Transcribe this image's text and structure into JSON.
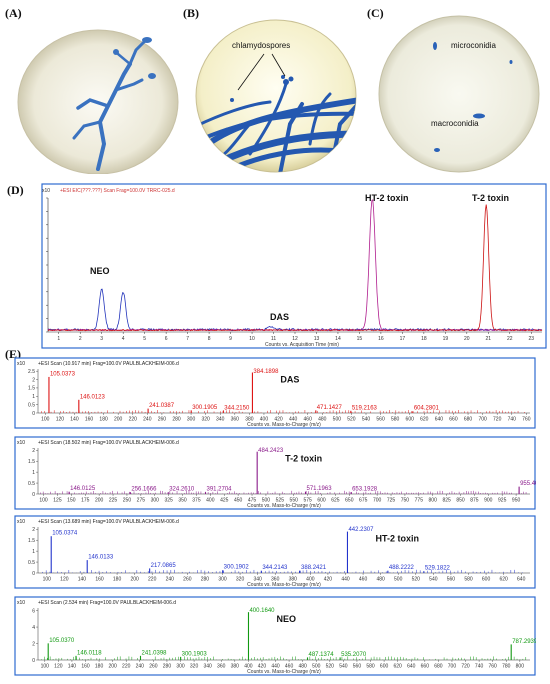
{
  "panels": {
    "A": {
      "label": "(A)"
    },
    "B": {
      "label": "(B)",
      "annotation": "chlamydospores"
    },
    "C": {
      "label": "(C)",
      "annotations": [
        "microconidia",
        "macroconidia"
      ]
    },
    "D": {
      "label": "(D)"
    },
    "E": {
      "label": "(E)"
    }
  },
  "chromatogram": {
    "header": "+ESI EIC(???.???) Scan Frag=100.0V TRRC-025.d",
    "y_exponent": "x10",
    "x_axis_label": "Counts vs. Acquisition Time (min)",
    "x_ticks": [
      "1",
      "2",
      "3",
      "4",
      "5",
      "6",
      "7",
      "8",
      "9",
      "10",
      "11",
      "12",
      "13",
      "14",
      "15",
      "16",
      "17",
      "18",
      "19",
      "20",
      "21",
      "22",
      "23"
    ],
    "peak_labels": {
      "neo": "NEO",
      "das": "DAS",
      "ht2": "HT-2 toxin",
      "t2": "T-2 toxin"
    },
    "colors": {
      "neo": "#2233bb",
      "ht2": "#b01e8e",
      "t2": "#cc1111"
    }
  },
  "chart_data": [
    {
      "type": "line",
      "title": "",
      "xlabel": "Counts vs. Acquisition Time (min)",
      "ylabel": "",
      "xlim": [
        0.5,
        23.5
      ],
      "series": [
        {
          "name": "NEO",
          "peaks": [
            {
              "x": 3.0,
              "y": 0.3
            },
            {
              "x": 4.0,
              "y": 0.28
            }
          ]
        },
        {
          "name": "DAS",
          "peaks": [
            {
              "x": 10.9,
              "y": 0.02
            }
          ]
        },
        {
          "name": "HT-2 toxin",
          "peaks": [
            {
              "x": 15.6,
              "y": 0.98
            }
          ]
        },
        {
          "name": "T-2 toxin",
          "peaks": [
            {
              "x": 20.9,
              "y": 0.94
            }
          ]
        }
      ]
    },
    {
      "type": "bar",
      "title": "+ESI Scan (10.917 min) Frag=100.0V PAULBLACKHEIM-006.d",
      "xlabel": "Counts vs. Mass-to-Charge (m/z)",
      "compound": "DAS",
      "color": "#dd1111",
      "y_exponent": "x10",
      "yticks": [
        "0",
        "0.5",
        "1",
        "1.5",
        "2",
        "2.5"
      ],
      "xlim": [
        90,
        765
      ],
      "xticks": [
        100,
        120,
        140,
        160,
        180,
        200,
        220,
        240,
        260,
        280,
        300,
        320,
        340,
        360,
        380,
        400,
        420,
        440,
        460,
        480,
        500,
        520,
        540,
        560,
        580,
        600,
        620,
        640,
        660,
        680,
        700,
        720,
        740,
        760
      ],
      "peaks": [
        {
          "mz": 105.0373,
          "rel": 0.82,
          "label": "105.0373"
        },
        {
          "mz": 146.0123,
          "rel": 0.3,
          "label": "146.0123"
        },
        {
          "mz": 241.0387,
          "rel": 0.1,
          "label": "241.0387"
        },
        {
          "mz": 300.1905,
          "rel": 0.06,
          "label": "300.1905"
        },
        {
          "mz": 344.215,
          "rel": 0.05,
          "label": "344.2150"
        },
        {
          "mz": 384.1898,
          "rel": 0.92,
          "label": "384.1898"
        },
        {
          "mz": 471.1427,
          "rel": 0.06,
          "label": "471.1427"
        },
        {
          "mz": 519.2163,
          "rel": 0.05,
          "label": "519.2163"
        },
        {
          "mz": 604.2801,
          "rel": 0.04,
          "label": "604.2801"
        }
      ]
    },
    {
      "type": "bar",
      "title": "+ESI Scan (18.502 min) Frag=100.0V PAULBLACKHEIM-006.d",
      "xlabel": "Counts vs. Mass-to-Charge (m/z)",
      "compound": "T-2 toxin",
      "color": "#8a1a8a",
      "y_exponent": "x10",
      "yticks": [
        "0",
        "0.5",
        "1",
        "1.5",
        "2"
      ],
      "xlim": [
        90,
        975
      ],
      "xticks": [
        100,
        125,
        150,
        175,
        200,
        225,
        250,
        275,
        300,
        325,
        350,
        375,
        400,
        425,
        450,
        475,
        500,
        525,
        550,
        575,
        600,
        625,
        650,
        675,
        700,
        725,
        750,
        775,
        800,
        825,
        850,
        875,
        900,
        925,
        950
      ],
      "peaks": [
        {
          "mz": 146.0125,
          "rel": 0.05,
          "label": "146.0125"
        },
        {
          "mz": 256.1666,
          "rel": 0.04,
          "label": "256.1666"
        },
        {
          "mz": 324.261,
          "rel": 0.04,
          "label": "324.2610"
        },
        {
          "mz": 391.2704,
          "rel": 0.04,
          "label": "391.2704"
        },
        {
          "mz": 484.2423,
          "rel": 0.92,
          "label": "484.2423"
        },
        {
          "mz": 571.1963,
          "rel": 0.05,
          "label": "571.1963"
        },
        {
          "mz": 653.1928,
          "rel": 0.04,
          "label": "653.1928"
        },
        {
          "mz": 955.409,
          "rel": 0.16,
          "label": "955.4090"
        }
      ]
    },
    {
      "type": "bar",
      "title": "+ESI Scan (13.689 min) Frag=100.0V PAULBLACKHEIM-006.d",
      "xlabel": "Counts vs. Mass-to-Charge (m/z)",
      "compound": "HT-2 toxin",
      "color": "#2233cc",
      "y_exponent": "x10",
      "yticks": [
        "0",
        "0.5",
        "1",
        "1.5",
        "2"
      ],
      "xlim": [
        90,
        650
      ],
      "xticks": [
        100,
        120,
        140,
        160,
        180,
        200,
        220,
        240,
        260,
        280,
        300,
        320,
        340,
        360,
        380,
        400,
        420,
        440,
        460,
        480,
        500,
        520,
        540,
        560,
        580,
        600,
        620,
        640
      ],
      "peaks": [
        {
          "mz": 105.0374,
          "rel": 0.8,
          "label": "105.0374"
        },
        {
          "mz": 146.0133,
          "rel": 0.28,
          "label": "146.0133"
        },
        {
          "mz": 217.0865,
          "rel": 0.1,
          "label": "217.0865"
        },
        {
          "mz": 300.1902,
          "rel": 0.06,
          "label": "300.1902"
        },
        {
          "mz": 344.2143,
          "rel": 0.05,
          "label": "344.2143"
        },
        {
          "mz": 388.2421,
          "rel": 0.05,
          "label": "388.2421"
        },
        {
          "mz": 442.2307,
          "rel": 0.9,
          "label": "442.2307"
        },
        {
          "mz": 488.2222,
          "rel": 0.05,
          "label": "488.2222"
        },
        {
          "mz": 529.1822,
          "rel": 0.04,
          "label": "529.1822"
        }
      ]
    },
    {
      "type": "bar",
      "title": "+ESI Scan (2.534 min) Frag=100.0V PAULBLACKHEIM-006.d",
      "xlabel": "Counts vs. Mass-to-Charge (m/z)",
      "compound": "NEO",
      "color": "#119911",
      "y_exponent": "x10",
      "yticks": [
        "0",
        "2",
        "4",
        "6"
      ],
      "xlim": [
        90,
        815
      ],
      "xticks": [
        100,
        120,
        140,
        160,
        180,
        200,
        220,
        240,
        260,
        280,
        300,
        320,
        340,
        360,
        380,
        400,
        420,
        440,
        460,
        480,
        500,
        520,
        540,
        560,
        580,
        600,
        620,
        640,
        660,
        680,
        700,
        720,
        740,
        760,
        780,
        800
      ],
      "peaks": [
        {
          "mz": 105.037,
          "rel": 0.32,
          "label": "105.0370"
        },
        {
          "mz": 146.0118,
          "rel": 0.08,
          "label": "146.0118"
        },
        {
          "mz": 241.0398,
          "rel": 0.08,
          "label": "241.0398"
        },
        {
          "mz": 300.1903,
          "rel": 0.06,
          "label": "300.1903"
        },
        {
          "mz": 400.164,
          "rel": 0.92,
          "label": "400.1640"
        },
        {
          "mz": 487.1374,
          "rel": 0.05,
          "label": "487.1374"
        },
        {
          "mz": 535.207,
          "rel": 0.05,
          "label": "535.2070"
        },
        {
          "mz": 787.2939,
          "rel": 0.3,
          "label": "787.2939"
        }
      ]
    }
  ]
}
